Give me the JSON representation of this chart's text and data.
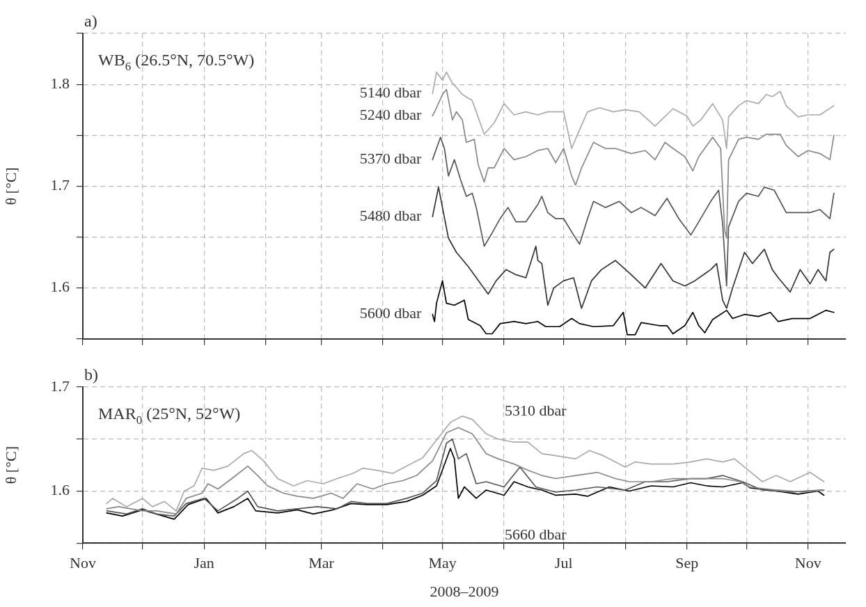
{
  "chart_data": [
    {
      "type": "line",
      "title": "a)",
      "ylabel": "θ [°C]",
      "annotations": [
        "WB$_{6}$ (26.5°N, 70.5°W)"
      ],
      "grid": true,
      "tick_labels": "y",
      "xlim": [
        "2008-11-01",
        "2009-11-20"
      ],
      "xticks": [
        {
          "value": "2008-11",
          "label": null
        },
        {
          "value": "2008-12",
          "label": null
        },
        {
          "value": "2009-01",
          "label": null
        },
        {
          "value": "2009-02",
          "label": null
        },
        {
          "value": "2009-03",
          "label": null
        },
        {
          "value": "2009-04",
          "label": null
        },
        {
          "value": "2009-05",
          "label": null
        },
        {
          "value": "2009-06",
          "label": null
        },
        {
          "value": "2009-07",
          "label": null
        },
        {
          "value": "2009-08",
          "label": null
        },
        {
          "value": "2009-09",
          "label": null
        },
        {
          "value": "2009-10",
          "label": null
        },
        {
          "value": "2009-11",
          "label": null
        }
      ],
      "ylim": [
        1.55,
        1.85
      ],
      "yticks": [
        {
          "value": 1.55,
          "label": null
        },
        1.6,
        {
          "value": 1.65,
          "label": null
        },
        1.7,
        {
          "value": 1.75,
          "label": null
        },
        1.8,
        {
          "value": 1.85,
          "label": null
        }
      ],
      "series": [
        {
          "name": "5140 dbar",
          "color": "#aaaaaa",
          "x": [
            "2009-04-26",
            "2009-04-28",
            "2009-05-01",
            "2009-05-03",
            "2009-05-06",
            "2009-05-08",
            "2009-05-11",
            "2009-05-16",
            "2009-05-18",
            "2009-05-22",
            "2009-05-27",
            "2009-06-01",
            "2009-06-06",
            "2009-06-12",
            "2009-06-18",
            "2009-06-23",
            "2009-07-01",
            "2009-07-05",
            "2009-07-08",
            "2009-07-13",
            "2009-07-19",
            "2009-07-26",
            "2009-08-01",
            "2009-08-08",
            "2009-08-16",
            "2009-08-25",
            "2009-09-01",
            "2009-09-04",
            "2009-09-08",
            "2009-09-14",
            "2009-09-19",
            "2009-09-21",
            "2009-09-22",
            "2009-09-27",
            "2009-10-01",
            "2009-10-07",
            "2009-10-11",
            "2009-10-14",
            "2009-10-18",
            "2009-10-21",
            "2009-10-27",
            "2009-11-01",
            "2009-11-07",
            "2009-11-14"
          ],
          "values": [
            1.791,
            1.812,
            1.804,
            1.812,
            1.801,
            1.797,
            1.79,
            1.784,
            1.773,
            1.751,
            1.762,
            1.781,
            1.77,
            1.773,
            1.77,
            1.773,
            1.773,
            1.737,
            1.751,
            1.773,
            1.777,
            1.773,
            1.775,
            1.773,
            1.759,
            1.776,
            1.769,
            1.759,
            1.765,
            1.781,
            1.765,
            1.737,
            1.768,
            1.779,
            1.784,
            1.781,
            1.79,
            1.788,
            1.793,
            1.779,
            1.768,
            1.77,
            1.77,
            1.779
          ]
        },
        {
          "name": "5240 dbar",
          "color": "#888888",
          "x": [
            "2009-04-26",
            "2009-04-28",
            "2009-05-01",
            "2009-05-03",
            "2009-05-06",
            "2009-05-08",
            "2009-05-11",
            "2009-05-13",
            "2009-05-17",
            "2009-05-19",
            "2009-05-22",
            "2009-05-24",
            "2009-05-27",
            "2009-06-01",
            "2009-06-06",
            "2009-06-12",
            "2009-06-18",
            "2009-06-23",
            "2009-06-27",
            "2009-07-01",
            "2009-07-05",
            "2009-07-07",
            "2009-07-10",
            "2009-07-16",
            "2009-07-22",
            "2009-07-27",
            "2009-08-04",
            "2009-08-11",
            "2009-08-16",
            "2009-08-21",
            "2009-08-25",
            "2009-08-31",
            "2009-09-04",
            "2009-09-07",
            "2009-09-14",
            "2009-09-18",
            "2009-09-20",
            "2009-09-21",
            "2009-09-22",
            "2009-09-27",
            "2009-10-01",
            "2009-10-07",
            "2009-10-11",
            "2009-10-18",
            "2009-10-21",
            "2009-10-27",
            "2009-11-01",
            "2009-11-07",
            "2009-11-12",
            "2009-11-14"
          ],
          "values": [
            1.769,
            1.777,
            1.79,
            1.795,
            1.765,
            1.773,
            1.765,
            1.743,
            1.746,
            1.721,
            1.704,
            1.718,
            1.718,
            1.737,
            1.726,
            1.729,
            1.735,
            1.737,
            1.723,
            1.737,
            1.71,
            1.701,
            1.718,
            1.743,
            1.737,
            1.737,
            1.732,
            1.735,
            1.726,
            1.743,
            1.737,
            1.729,
            1.715,
            1.729,
            1.748,
            1.737,
            1.657,
            1.649,
            1.726,
            1.746,
            1.748,
            1.746,
            1.751,
            1.751,
            1.74,
            1.729,
            1.735,
            1.732,
            1.726,
            1.75
          ]
        },
        {
          "name": "5370 dbar",
          "color": "#555555",
          "x": [
            "2009-04-26",
            "2009-04-28",
            "2009-04-30",
            "2009-05-02",
            "2009-05-04",
            "2009-05-07",
            "2009-05-10",
            "2009-05-13",
            "2009-05-16",
            "2009-05-18",
            "2009-05-22",
            "2009-05-26",
            "2009-05-30",
            "2009-06-03",
            "2009-06-07",
            "2009-06-12",
            "2009-06-18",
            "2009-06-20",
            "2009-06-23",
            "2009-06-27",
            "2009-07-01",
            "2009-07-06",
            "2009-07-09",
            "2009-07-13",
            "2009-07-16",
            "2009-07-22",
            "2009-07-29",
            "2009-08-04",
            "2009-08-09",
            "2009-08-16",
            "2009-08-22",
            "2009-08-28",
            "2009-09-03",
            "2009-09-07",
            "2009-09-13",
            "2009-09-17",
            "2009-09-19",
            "2009-09-21",
            "2009-09-22",
            "2009-09-27",
            "2009-10-01",
            "2009-10-07",
            "2009-10-10",
            "2009-10-15",
            "2009-10-21",
            "2009-10-27",
            "2009-11-02",
            "2009-11-07",
            "2009-11-12",
            "2009-11-14"
          ],
          "values": [
            1.726,
            1.737,
            1.748,
            1.737,
            1.71,
            1.726,
            1.707,
            1.69,
            1.693,
            1.679,
            1.641,
            1.654,
            1.668,
            1.679,
            1.665,
            1.665,
            1.682,
            1.69,
            1.674,
            1.668,
            1.668,
            1.652,
            1.643,
            1.668,
            1.685,
            1.679,
            1.685,
            1.674,
            1.679,
            1.671,
            1.688,
            1.668,
            1.652,
            1.665,
            1.685,
            1.696,
            1.663,
            1.602,
            1.66,
            1.685,
            1.693,
            1.69,
            1.699,
            1.696,
            1.674,
            1.674,
            1.674,
            1.677,
            1.668,
            1.693
          ]
        },
        {
          "name": "5480 dbar",
          "color": "#333333",
          "x": [
            "2009-04-26",
            "2009-04-29",
            "2009-05-04",
            "2009-05-08",
            "2009-05-14",
            "2009-05-21",
            "2009-05-24",
            "2009-05-28",
            "2009-06-02",
            "2009-06-07",
            "2009-06-12",
            "2009-06-17",
            "2009-06-18",
            "2009-06-20",
            "2009-06-23",
            "2009-06-26",
            "2009-07-01",
            "2009-07-06",
            "2009-07-10",
            "2009-07-15",
            "2009-07-20",
            "2009-07-27",
            "2009-08-04",
            "2009-08-11",
            "2009-08-19",
            "2009-08-25",
            "2009-08-31",
            "2009-09-05",
            "2009-09-13",
            "2009-09-16",
            "2009-09-19",
            "2009-09-21",
            "2009-09-24",
            "2009-09-30",
            "2009-10-04",
            "2009-10-10",
            "2009-10-14",
            "2009-10-17",
            "2009-10-23",
            "2009-10-28",
            "2009-11-02",
            "2009-11-06",
            "2009-11-10",
            "2009-11-12",
            "2009-11-14"
          ],
          "values": [
            1.67,
            1.699,
            1.649,
            1.635,
            1.621,
            1.602,
            1.594,
            1.607,
            1.618,
            1.613,
            1.61,
            1.641,
            1.627,
            1.624,
            1.583,
            1.6,
            1.607,
            1.61,
            1.58,
            1.607,
            1.618,
            1.627,
            1.613,
            1.6,
            1.624,
            1.607,
            1.602,
            1.607,
            1.618,
            1.624,
            1.588,
            1.58,
            1.6,
            1.635,
            1.624,
            1.638,
            1.618,
            1.61,
            1.596,
            1.618,
            1.604,
            1.618,
            1.607,
            1.635,
            1.638
          ]
        },
        {
          "name": "5600 dbar",
          "color": "#000000",
          "x": [
            "2009-04-26",
            "2009-04-27",
            "2009-04-28",
            "2009-05-01",
            "2009-05-03",
            "2009-05-07",
            "2009-05-12",
            "2009-05-14",
            "2009-05-20",
            "2009-05-23",
            "2009-05-26",
            "2009-05-30",
            "2009-06-06",
            "2009-06-12",
            "2009-06-18",
            "2009-06-22",
            "2009-06-29",
            "2009-07-05",
            "2009-07-09",
            "2009-07-16",
            "2009-07-26",
            "2009-07-31",
            "2009-08-02",
            "2009-08-06",
            "2009-08-09",
            "2009-08-18",
            "2009-08-22",
            "2009-08-25",
            "2009-08-31",
            "2009-09-04",
            "2009-09-07",
            "2009-09-10",
            "2009-09-14",
            "2009-09-21",
            "2009-09-24",
            "2009-09-30",
            "2009-10-07",
            "2009-10-13",
            "2009-10-17",
            "2009-10-24",
            "2009-11-02",
            "2009-11-10",
            "2009-11-14"
          ],
          "values": [
            1.574,
            1.567,
            1.585,
            1.607,
            1.585,
            1.583,
            1.588,
            1.569,
            1.563,
            1.555,
            1.555,
            1.565,
            1.567,
            1.565,
            1.567,
            1.562,
            1.562,
            1.57,
            1.565,
            1.562,
            1.563,
            1.576,
            1.554,
            1.554,
            1.566,
            1.563,
            1.563,
            1.555,
            1.563,
            1.576,
            1.563,
            1.556,
            1.569,
            1.578,
            1.57,
            1.574,
            1.572,
            1.576,
            1.567,
            1.57,
            1.57,
            1.578,
            1.576
          ]
        }
      ]
    },
    {
      "type": "line",
      "title": "b)",
      "xlabel": "2008–2009",
      "ylabel": "θ [°C]",
      "annotations": [
        "MAR$_{0}$ (25°N, 52°W)"
      ],
      "grid": true,
      "xlim": [
        "2008-11-01",
        "2009-11-20"
      ],
      "xticks": [
        {
          "value": "2008-11",
          "label": "Nov"
        },
        {
          "value": "2008-12",
          "label": null
        },
        {
          "value": "2009-01",
          "label": "Jan"
        },
        {
          "value": "2009-02",
          "label": null
        },
        {
          "value": "2009-03",
          "label": "Mar"
        },
        {
          "value": "2009-04",
          "label": null
        },
        {
          "value": "2009-05",
          "label": "May"
        },
        {
          "value": "2009-06",
          "label": null
        },
        {
          "value": "2009-07",
          "label": "Jul"
        },
        {
          "value": "2009-08",
          "label": null
        },
        {
          "value": "2009-09",
          "label": "Sep"
        },
        {
          "value": "2009-10",
          "label": null
        },
        {
          "value": "2009-11",
          "label": "Nov"
        }
      ],
      "ylim": [
        1.55,
        1.7
      ],
      "yticks": [
        {
          "value": 1.55,
          "label": null
        },
        1.6,
        {
          "value": 1.65,
          "label": null
        },
        1.7
      ],
      "series": [
        {
          "name": "5310 dbar",
          "color": "#aaaaaa",
          "x": [
            "2008-11-13",
            "2008-11-16",
            "2008-11-23",
            "2008-12-01",
            "2008-12-06",
            "2008-12-12",
            "2008-12-18",
            "2008-12-22",
            "2008-12-27",
            "2008-12-31",
            "2009-01-06",
            "2009-01-13",
            "2009-01-21",
            "2009-01-25",
            "2009-01-31",
            "2009-02-07",
            "2009-02-15",
            "2009-02-22",
            "2009-03-02",
            "2009-03-09",
            "2009-03-17",
            "2009-03-22",
            "2009-03-29",
            "2009-04-06",
            "2009-04-13",
            "2009-04-21",
            "2009-04-28",
            "2009-05-05",
            "2009-05-11",
            "2009-05-16",
            "2009-05-23",
            "2009-05-29",
            "2009-06-06",
            "2009-06-13",
            "2009-06-20",
            "2009-06-27",
            "2009-07-07",
            "2009-07-14",
            "2009-07-21",
            "2009-08-01",
            "2009-08-06",
            "2009-08-14",
            "2009-08-25",
            "2009-09-03",
            "2009-09-11",
            "2009-09-19",
            "2009-09-25",
            "2009-10-02",
            "2009-10-09",
            "2009-10-16",
            "2009-10-23",
            "2009-11-02",
            "2009-11-09"
          ],
          "values": [
            1.588,
            1.593,
            1.585,
            1.593,
            1.585,
            1.59,
            1.581,
            1.6,
            1.605,
            1.622,
            1.62,
            1.624,
            1.636,
            1.639,
            1.629,
            1.612,
            1.605,
            1.61,
            1.607,
            1.612,
            1.617,
            1.622,
            1.62,
            1.617,
            1.624,
            1.632,
            1.649,
            1.666,
            1.672,
            1.669,
            1.655,
            1.65,
            1.647,
            1.647,
            1.636,
            1.634,
            1.631,
            1.639,
            1.634,
            1.623,
            1.628,
            1.626,
            1.626,
            1.628,
            1.631,
            1.628,
            1.631,
            1.62,
            1.609,
            1.615,
            1.609,
            1.618,
            1.609
          ]
        },
        {
          "color": "#888888",
          "x": [
            "2008-11-13",
            "2008-11-19",
            "2008-12-01",
            "2008-12-08",
            "2008-12-18",
            "2008-12-23",
            "2008-12-31",
            "2009-01-03",
            "2009-01-08",
            "2009-01-15",
            "2009-01-23",
            "2009-01-28",
            "2009-02-02",
            "2009-02-10",
            "2009-02-17",
            "2009-02-25",
            "2009-03-06",
            "2009-03-12",
            "2009-03-19",
            "2009-03-27",
            "2009-04-03",
            "2009-04-11",
            "2009-04-18",
            "2009-04-26",
            "2009-05-03",
            "2009-05-09",
            "2009-05-16",
            "2009-05-23",
            "2009-05-29",
            "2009-06-06",
            "2009-06-13",
            "2009-06-20",
            "2009-06-27",
            "2009-07-07",
            "2009-07-18",
            "2009-07-27",
            "2009-08-03",
            "2009-08-14",
            "2009-08-25",
            "2009-09-03",
            "2009-09-11",
            "2009-09-19",
            "2009-09-28",
            "2009-10-02",
            "2009-10-16",
            "2009-10-30",
            "2009-11-09"
          ],
          "values": [
            1.583,
            1.585,
            1.581,
            1.581,
            1.578,
            1.593,
            1.598,
            1.607,
            1.602,
            1.612,
            1.624,
            1.615,
            1.605,
            1.598,
            1.595,
            1.593,
            1.598,
            1.593,
            1.607,
            1.602,
            1.607,
            1.61,
            1.615,
            1.629,
            1.656,
            1.661,
            1.655,
            1.636,
            1.631,
            1.626,
            1.62,
            1.615,
            1.612,
            1.615,
            1.618,
            1.612,
            1.609,
            1.609,
            1.612,
            1.612,
            1.612,
            1.612,
            1.609,
            1.604,
            1.601,
            1.599,
            1.601
          ]
        },
        {
          "color": "#555555",
          "x": [
            "2008-11-13",
            "2008-11-23",
            "2008-12-01",
            "2008-12-08",
            "2008-12-17",
            "2008-12-23",
            "2009-01-01",
            "2009-01-08",
            "2009-01-18",
            "2009-01-23",
            "2009-01-28",
            "2009-02-07",
            "2009-02-17",
            "2009-02-27",
            "2009-03-09",
            "2009-03-16",
            "2009-03-24",
            "2009-04-03",
            "2009-04-13",
            "2009-04-21",
            "2009-04-28",
            "2009-05-03",
            "2009-05-06",
            "2009-05-09",
            "2009-05-13",
            "2009-05-18",
            "2009-05-23",
            "2009-06-01",
            "2009-06-09",
            "2009-06-17",
            "2009-06-27",
            "2009-07-07",
            "2009-07-18",
            "2009-08-01",
            "2009-08-11",
            "2009-08-22",
            "2009-09-03",
            "2009-09-11",
            "2009-09-19",
            "2009-09-29",
            "2009-10-09",
            "2009-10-23",
            "2009-11-09"
          ],
          "values": [
            1.581,
            1.578,
            1.583,
            1.578,
            1.576,
            1.588,
            1.593,
            1.581,
            1.593,
            1.6,
            1.585,
            1.581,
            1.583,
            1.585,
            1.583,
            1.59,
            1.588,
            1.588,
            1.593,
            1.598,
            1.61,
            1.646,
            1.65,
            1.631,
            1.636,
            1.607,
            1.609,
            1.604,
            1.623,
            1.604,
            1.599,
            1.601,
            1.604,
            1.601,
            1.609,
            1.609,
            1.612,
            1.612,
            1.615,
            1.609,
            1.601,
            1.599,
            1.601
          ]
        },
        {
          "name": "5660 dbar",
          "color": "#000000",
          "x": [
            "2008-11-13",
            "2008-11-21",
            "2008-12-01",
            "2008-12-08",
            "2008-12-17",
            "2008-12-24",
            "2009-01-02",
            "2009-01-08",
            "2009-01-16",
            "2009-01-23",
            "2009-01-27",
            "2009-02-07",
            "2009-02-17",
            "2009-02-25",
            "2009-03-07",
            "2009-03-16",
            "2009-03-24",
            "2009-04-03",
            "2009-04-13",
            "2009-04-21",
            "2009-04-28",
            "2009-05-05",
            "2009-05-07",
            "2009-05-09",
            "2009-05-12",
            "2009-05-18",
            "2009-05-23",
            "2009-06-01",
            "2009-06-06",
            "2009-06-13",
            "2009-06-20",
            "2009-06-27",
            "2009-07-07",
            "2009-07-13",
            "2009-07-24",
            "2009-08-03",
            "2009-08-14",
            "2009-08-25",
            "2009-09-03",
            "2009-09-11",
            "2009-09-19",
            "2009-09-29",
            "2009-10-03",
            "2009-10-16",
            "2009-10-27",
            "2009-11-06",
            "2009-11-09"
          ],
          "values": [
            1.579,
            1.576,
            1.582,
            1.578,
            1.573,
            1.587,
            1.593,
            1.579,
            1.585,
            1.593,
            1.581,
            1.579,
            1.582,
            1.578,
            1.582,
            1.588,
            1.587,
            1.587,
            1.59,
            1.596,
            1.605,
            1.641,
            1.631,
            1.593,
            1.604,
            1.593,
            1.601,
            1.596,
            1.609,
            1.604,
            1.601,
            1.596,
            1.597,
            1.595,
            1.604,
            1.6,
            1.605,
            1.604,
            1.608,
            1.605,
            1.604,
            1.608,
            1.603,
            1.6,
            1.597,
            1.6,
            1.596
          ]
        }
      ]
    }
  ]
}
